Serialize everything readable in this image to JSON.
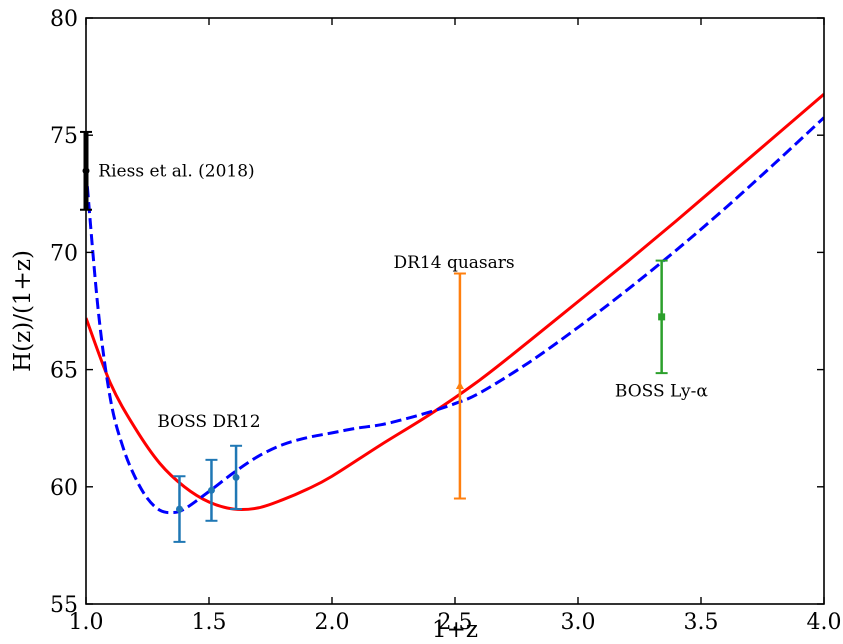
{
  "chart_data": {
    "type": "line",
    "title": "",
    "xlabel": "1+z",
    "ylabel": "H(z)/(1+z)",
    "xlim": [
      1.0,
      4.0
    ],
    "ylim": [
      55,
      80
    ],
    "xticks": [
      1.0,
      1.5,
      2.0,
      2.5,
      3.0,
      3.5,
      4.0
    ],
    "xtick_labels": [
      "1.0",
      "1.5",
      "2.0",
      "2.5",
      "3.0",
      "3.5",
      "4.0"
    ],
    "yticks": [
      55,
      60,
      65,
      70,
      75,
      80
    ],
    "ytick_labels": [
      "55",
      "60",
      "65",
      "70",
      "75",
      "80"
    ],
    "grid": false,
    "legend": "none",
    "series": [
      {
        "style": "solid",
        "color": "#ff0000",
        "x": [
          1.0,
          1.1,
          1.2,
          1.3,
          1.4,
          1.5,
          1.6,
          1.7,
          1.8,
          1.9,
          2.0,
          2.2,
          2.4,
          2.6,
          2.8,
          3.0,
          3.2,
          3.4,
          3.6,
          3.8,
          4.0
        ],
        "y": [
          67.2,
          64.4,
          62.5,
          61.0,
          60.0,
          59.35,
          59.05,
          59.1,
          59.45,
          59.9,
          60.45,
          61.8,
          63.1,
          64.55,
          66.2,
          67.9,
          69.6,
          71.35,
          73.15,
          74.95,
          76.75
        ]
      },
      {
        "style": "dashed",
        "color": "#0000ff",
        "x": [
          1.0,
          1.05,
          1.1,
          1.15,
          1.2,
          1.25,
          1.3,
          1.35,
          1.4,
          1.5,
          1.6,
          1.7,
          1.8,
          1.9,
          2.0,
          2.1,
          2.2,
          2.3,
          2.4,
          2.5,
          2.6,
          2.8,
          3.0,
          3.2,
          3.4,
          3.6,
          3.8,
          4.0
        ],
        "y": [
          73.5,
          67.5,
          63.7,
          61.7,
          60.4,
          59.5,
          59.0,
          58.9,
          59.05,
          59.8,
          60.6,
          61.3,
          61.8,
          62.1,
          62.3,
          62.5,
          62.65,
          62.9,
          63.2,
          63.55,
          64.0,
          65.3,
          66.8,
          68.4,
          70.1,
          71.9,
          73.8,
          75.75
        ]
      }
    ],
    "data_points": [
      {
        "label": "",
        "x": 1.0,
        "y": 73.48,
        "yerr": 1.66,
        "color": "#000000",
        "marker": "circle"
      },
      {
        "label": "",
        "x": 1.38,
        "y": 59.05,
        "yerr": 1.4,
        "color": "#1f77b4",
        "marker": "circle"
      },
      {
        "label": "",
        "x": 1.51,
        "y": 59.85,
        "yerr": 1.3,
        "color": "#1f77b4",
        "marker": "circle"
      },
      {
        "label": "",
        "x": 1.61,
        "y": 60.4,
        "yerr": 1.35,
        "color": "#1f77b4",
        "marker": "circle"
      },
      {
        "label": "",
        "x": 2.52,
        "y": 64.3,
        "yerr": 4.8,
        "color": "#ff7f0e",
        "marker": "triangle"
      },
      {
        "label": "",
        "x": 3.34,
        "y": 67.25,
        "yerr": 2.4,
        "color": "#2ca02c",
        "marker": "square"
      }
    ],
    "annotations": [
      {
        "text": "Riess et al. (2018)",
        "x": 1.05,
        "y": 73.5
      },
      {
        "text": "BOSS DR12",
        "x": 1.29,
        "y": 62.8
      },
      {
        "text": "DR14 quasars",
        "x": 2.25,
        "y": 69.6
      },
      {
        "text": "BOSS Ly-α",
        "x": 3.15,
        "y": 64.1
      }
    ]
  }
}
